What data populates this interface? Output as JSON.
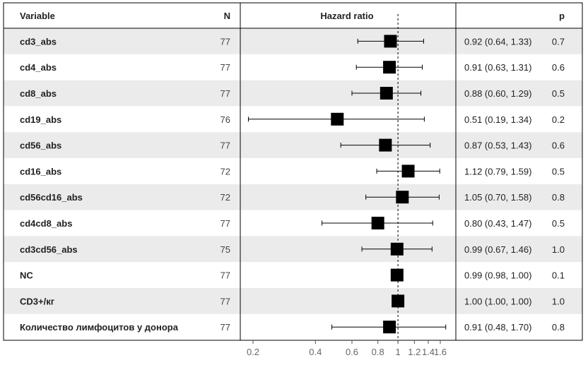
{
  "chart_data": {
    "type": "forest",
    "title": "",
    "headers": {
      "variable": "Variable",
      "n": "N",
      "plot": "Hazard ratio",
      "p": "p"
    },
    "x_scale": "log",
    "xlim": [
      0.17,
      1.95
    ],
    "reference_line": 1,
    "x_ticks": [
      {
        "value": 0.2,
        "label": "0.2"
      },
      {
        "value": 0.4,
        "label": "0.4"
      },
      {
        "value": 0.6,
        "label": "0.6"
      },
      {
        "value": 0.8,
        "label": "0.8"
      },
      {
        "value": 1.0,
        "label": "1"
      },
      {
        "value": 1.2,
        "label": "1.2"
      },
      {
        "value": 1.4,
        "label": "1.4"
      },
      {
        "value": 1.6,
        "label": "1.6"
      }
    ],
    "rows": [
      {
        "variable": "cd3_abs",
        "n": "77",
        "hr": 0.92,
        "lo": 0.64,
        "hi": 1.33,
        "ci_text": "0.92 (0.64, 1.33)",
        "p": "0.7"
      },
      {
        "variable": "cd4_abs",
        "n": "77",
        "hr": 0.91,
        "lo": 0.63,
        "hi": 1.31,
        "ci_text": "0.91 (0.63, 1.31)",
        "p": "0.6"
      },
      {
        "variable": "cd8_abs",
        "n": "77",
        "hr": 0.88,
        "lo": 0.6,
        "hi": 1.29,
        "ci_text": "0.88 (0.60, 1.29)",
        "p": "0.5"
      },
      {
        "variable": "cd19_abs",
        "n": "76",
        "hr": 0.51,
        "lo": 0.19,
        "hi": 1.34,
        "ci_text": "0.51 (0.19, 1.34)",
        "p": "0.2"
      },
      {
        "variable": "cd56_abs",
        "n": "77",
        "hr": 0.87,
        "lo": 0.53,
        "hi": 1.43,
        "ci_text": "0.87 (0.53, 1.43)",
        "p": "0.6"
      },
      {
        "variable": "cd16_abs",
        "n": "72",
        "hr": 1.12,
        "lo": 0.79,
        "hi": 1.59,
        "ci_text": "1.12 (0.79, 1.59)",
        "p": "0.5"
      },
      {
        "variable": "cd56cd16_abs",
        "n": "72",
        "hr": 1.05,
        "lo": 0.7,
        "hi": 1.58,
        "ci_text": "1.05 (0.70, 1.58)",
        "p": "0.8"
      },
      {
        "variable": "cd4cd8_abs",
        "n": "77",
        "hr": 0.8,
        "lo": 0.43,
        "hi": 1.47,
        "ci_text": "0.80 (0.43, 1.47)",
        "p": "0.5"
      },
      {
        "variable": "cd3cd56_abs",
        "n": "75",
        "hr": 0.99,
        "lo": 0.67,
        "hi": 1.46,
        "ci_text": "0.99 (0.67, 1.46)",
        "p": "1.0"
      },
      {
        "variable": "NC",
        "n": "77",
        "hr": 0.99,
        "lo": 0.98,
        "hi": 1.0,
        "ci_text": "0.99 (0.98, 1.00)",
        "p": "0.1"
      },
      {
        "variable": "CD3+/кг",
        "n": "77",
        "hr": 1.0,
        "lo": 1.0,
        "hi": 1.0,
        "ci_text": "1.00 (1.00, 1.00)",
        "p": "1.0"
      },
      {
        "variable": "Количество лимфоцитов у донора",
        "n": "77",
        "hr": 0.91,
        "lo": 0.48,
        "hi": 1.7,
        "ci_text": "0.91 (0.48, 1.70)",
        "p": "0.8"
      }
    ]
  },
  "colors": {
    "stripe": "#ebebeb",
    "border": "#000000",
    "marker": "#000000",
    "text": "#222222",
    "muted_text": "#444444"
  }
}
